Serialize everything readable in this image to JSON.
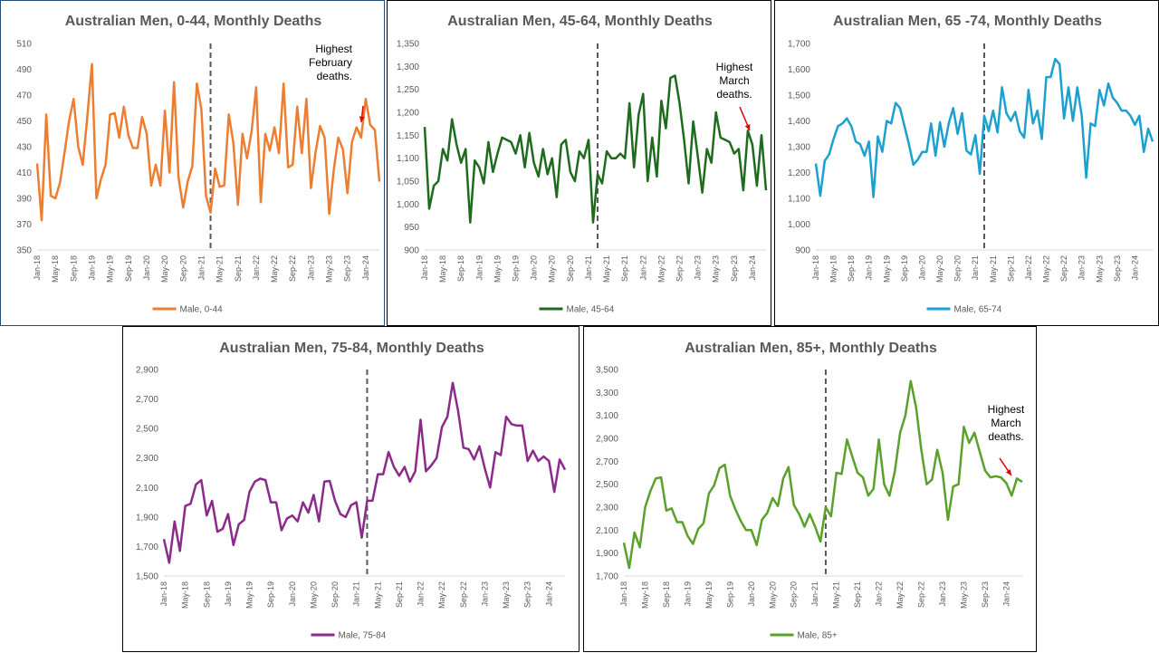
{
  "chart_data": [
    {
      "type": "line",
      "title": "Australian Men, 0-44, Monthly Deaths",
      "series": [
        {
          "name": "Male, 0-44",
          "color": "#ed7d31"
        }
      ],
      "ylim": [
        350,
        510
      ],
      "yticks": [
        350,
        370,
        390,
        410,
        430,
        450,
        470,
        490,
        510
      ],
      "ytick_labels": [
        "350",
        "370",
        "390",
        "410",
        "430",
        "450",
        "470",
        "490",
        "510"
      ],
      "x_start": "Jan-18",
      "xtick_labels": [
        "Jan-18",
        "May-18",
        "Sep-18",
        "Jan-19",
        "May-19",
        "Sep-19",
        "Jan-20",
        "May-20",
        "Sep-20",
        "Jan-21",
        "May-21",
        "Sep-21",
        "Jan-22",
        "May-22",
        "Sep-22",
        "Jan-23",
        "May-23",
        "Sep-23",
        "Jan-24"
      ],
      "vline_at": "Mar-21",
      "values": [
        417,
        373,
        455,
        392,
        390,
        402,
        425,
        450,
        467,
        430,
        416,
        453,
        494,
        390,
        405,
        416,
        455,
        456,
        437,
        461,
        439,
        429,
        429,
        453,
        440,
        400,
        416,
        400,
        458,
        410,
        480,
        406,
        383,
        403,
        415,
        479,
        459,
        392,
        379,
        413,
        399,
        400,
        455,
        433,
        385,
        440,
        421,
        442,
        476,
        387,
        440,
        427,
        445,
        425,
        479,
        414,
        416,
        461,
        425,
        467,
        398,
        425,
        446,
        437,
        378,
        412,
        437,
        428,
        394,
        434,
        445,
        437,
        467,
        447,
        443,
        403
      ],
      "annotation": {
        "text": [
          "Highest",
          "February",
          "deaths."
        ]
      }
    },
    {
      "type": "line",
      "title": "Australian Men, 45-64, Monthly Deaths",
      "series": [
        {
          "name": "Male, 45-64",
          "color": "#1e6b1e"
        }
      ],
      "ylim": [
        900,
        1350
      ],
      "yticks": [
        900,
        950,
        1000,
        1050,
        1100,
        1150,
        1200,
        1250,
        1300,
        1350
      ],
      "ytick_labels": [
        "900",
        "950",
        "1,000",
        "1,050",
        "1,100",
        "1,150",
        "1,200",
        "1,250",
        "1,300",
        "1,350"
      ],
      "x_start": "Jan-18",
      "xtick_labels": [
        "Jan-18",
        "May-18",
        "Sep-18",
        "Jan-19",
        "May-19",
        "Sep-19",
        "Jan-20",
        "May-20",
        "Sep-20",
        "Jan-21",
        "May-21",
        "Sep-21",
        "Jan-22",
        "May-22",
        "Sep-22",
        "Jan-23",
        "May-23",
        "Sep-23",
        "Jan-24"
      ],
      "vline_at": "Mar-21",
      "values": [
        1168,
        990,
        1040,
        1050,
        1120,
        1095,
        1185,
        1130,
        1090,
        1120,
        960,
        1095,
        1080,
        1045,
        1135,
        1070,
        1110,
        1145,
        1140,
        1135,
        1110,
        1150,
        1080,
        1155,
        1090,
        1060,
        1120,
        1065,
        1100,
        1015,
        1130,
        1140,
        1070,
        1050,
        1115,
        1100,
        1140,
        960,
        1065,
        1045,
        1115,
        1100,
        1100,
        1110,
        1100,
        1220,
        1080,
        1195,
        1240,
        1050,
        1145,
        1060,
        1225,
        1165,
        1275,
        1280,
        1220,
        1140,
        1045,
        1180,
        1105,
        1025,
        1120,
        1090,
        1200,
        1145,
        1140,
        1135,
        1110,
        1120,
        1030,
        1160,
        1130,
        1040,
        1150,
        1030
      ],
      "annotation": {
        "text": [
          "Highest",
          "March",
          "deaths."
        ]
      }
    },
    {
      "type": "line",
      "title": "Australian Men, 65 -74, Monthly Deaths",
      "series": [
        {
          "name": "Male, 65-74",
          "color": "#1ca0d0"
        }
      ],
      "ylim": [
        900,
        1700
      ],
      "yticks": [
        900,
        1000,
        1100,
        1200,
        1300,
        1400,
        1500,
        1600,
        1700
      ],
      "ytick_labels": [
        "900",
        "1,000",
        "1,100",
        "1,200",
        "1,300",
        "1,400",
        "1,500",
        "1,600",
        "1,700"
      ],
      "x_start": "Jan-18",
      "xtick_labels": [
        "Jan-18",
        "May-18",
        "Sep-18",
        "Jan-19",
        "May-19",
        "Sep-19",
        "Jan-20",
        "May-20",
        "Sep-20",
        "Jan-21",
        "May-21",
        "Sep-21",
        "Jan-22",
        "May-22",
        "Sep-22",
        "Jan-23",
        "May-23",
        "Sep-23",
        "Jan-24"
      ],
      "vline_at": "Mar-21",
      "values": [
        1235,
        1110,
        1245,
        1270,
        1330,
        1380,
        1390,
        1410,
        1380,
        1320,
        1310,
        1265,
        1320,
        1105,
        1340,
        1280,
        1400,
        1390,
        1470,
        1450,
        1380,
        1310,
        1230,
        1250,
        1280,
        1280,
        1390,
        1265,
        1395,
        1300,
        1390,
        1450,
        1350,
        1430,
        1285,
        1270,
        1345,
        1195,
        1420,
        1360,
        1440,
        1355,
        1530,
        1430,
        1400,
        1435,
        1360,
        1335,
        1520,
        1390,
        1440,
        1330,
        1570,
        1570,
        1640,
        1620,
        1410,
        1530,
        1400,
        1530,
        1420,
        1180,
        1390,
        1380,
        1520,
        1460,
        1545,
        1490,
        1470,
        1440,
        1440,
        1420,
        1385,
        1420,
        1280,
        1370,
        1320
      ],
      "annotation": null
    },
    {
      "type": "line",
      "title": "Australian Men, 75-84, Monthly Deaths",
      "series": [
        {
          "name": "Male, 75-84",
          "color": "#8b2a8b"
        }
      ],
      "ylim": [
        1500,
        2900
      ],
      "yticks": [
        1500,
        1700,
        1900,
        2100,
        2300,
        2500,
        2700,
        2900
      ],
      "ytick_labels": [
        "1,500",
        "1,700",
        "1,900",
        "2,100",
        "2,300",
        "2,500",
        "2,700",
        "2,900"
      ],
      "x_start": "Jan-18",
      "xtick_labels": [
        "Jan-18",
        "May-18",
        "Sep-18",
        "Jan-19",
        "May-19",
        "Sep-19",
        "Jan-20",
        "May-20",
        "Sep-20",
        "Jan-21",
        "May-21",
        "Sep-21",
        "Jan-22",
        "May-22",
        "Sep-22",
        "Jan-23",
        "May-23",
        "Sep-23",
        "Jan-24"
      ],
      "vline_at": "Mar-21",
      "values": [
        1750,
        1590,
        1870,
        1670,
        1975,
        1990,
        2120,
        2150,
        1910,
        2010,
        1800,
        1820,
        1920,
        1710,
        1850,
        1880,
        2070,
        2140,
        2160,
        2150,
        2000,
        2000,
        1810,
        1890,
        1910,
        1870,
        2000,
        1930,
        2050,
        1870,
        2140,
        2145,
        2010,
        1920,
        1900,
        1980,
        2000,
        1760,
        2010,
        2010,
        2190,
        2190,
        2340,
        2240,
        2180,
        2240,
        2140,
        2210,
        2560,
        2210,
        2250,
        2300,
        2510,
        2580,
        2810,
        2620,
        2370,
        2360,
        2290,
        2380,
        2230,
        2100,
        2340,
        2320,
        2580,
        2530,
        2520,
        2520,
        2280,
        2350,
        2280,
        2310,
        2280,
        2070,
        2290,
        2220
      ],
      "annotation": null
    },
    {
      "type": "line",
      "title": "Australian Men, 85+, Monthly Deaths",
      "series": [
        {
          "name": "Male, 85+",
          "color": "#5aa02c"
        }
      ],
      "ylim": [
        1700,
        3500
      ],
      "yticks": [
        1700,
        1900,
        2100,
        2300,
        2500,
        2700,
        2900,
        3100,
        3300,
        3500
      ],
      "ytick_labels": [
        "1,700",
        "1,900",
        "2,100",
        "2,300",
        "2,500",
        "2,700",
        "2,900",
        "3,100",
        "3,300",
        "3,500"
      ],
      "x_start": "Jan-18",
      "xtick_labels": [
        "Jan-18",
        "May-18",
        "Sep-18",
        "Jan-19",
        "May-19",
        "Sep-19",
        "Jan-20",
        "May-20",
        "Sep-20",
        "Jan-21",
        "May-21",
        "Sep-21",
        "Jan-22",
        "May-22",
        "Sep-22",
        "Jan-23",
        "May-23",
        "Sep-23",
        "Jan-24"
      ],
      "vline_at": "Mar-21",
      "values": [
        1990,
        1770,
        2080,
        1950,
        2300,
        2440,
        2550,
        2560,
        2270,
        2290,
        2170,
        2170,
        2050,
        1980,
        2110,
        2160,
        2420,
        2490,
        2640,
        2670,
        2400,
        2280,
        2180,
        2100,
        2100,
        1970,
        2190,
        2250,
        2380,
        2310,
        2550,
        2650,
        2320,
        2240,
        2130,
        2240,
        2130,
        2000,
        2300,
        2220,
        2600,
        2590,
        2890,
        2740,
        2600,
        2560,
        2400,
        2460,
        2890,
        2500,
        2400,
        2610,
        2950,
        3100,
        3400,
        3170,
        2800,
        2500,
        2540,
        2800,
        2600,
        2190,
        2480,
        2500,
        3000,
        2860,
        2950,
        2780,
        2620,
        2560,
        2570,
        2560,
        2510,
        2400,
        2550,
        2520
      ],
      "annotation": {
        "text": [
          "Highest",
          "March",
          "deaths."
        ]
      }
    }
  ]
}
